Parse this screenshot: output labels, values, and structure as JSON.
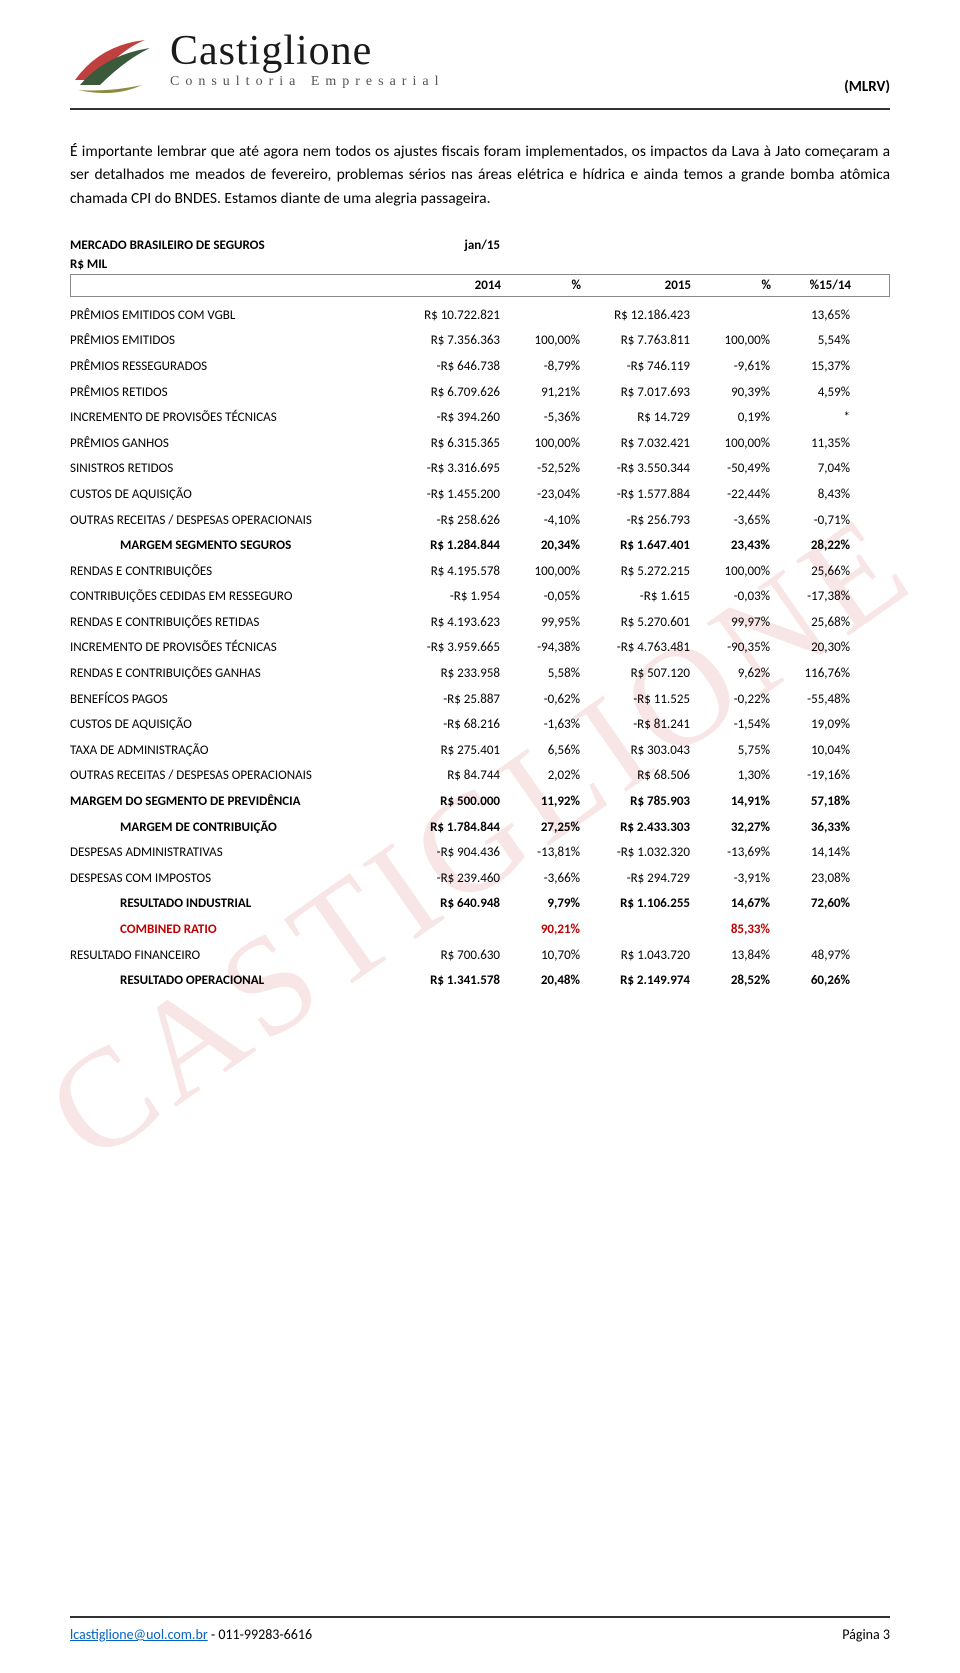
{
  "header": {
    "logo_main": "Castiglione",
    "logo_sub": "Consultoria Empresarial",
    "ticker": "(MLRV)"
  },
  "paragraph": "É importante lembrar que até agora nem todos os ajustes fiscais foram implementados, os impactos da Lava à Jato começaram a ser detalhados me meados de fevereiro, problemas sérios nas áreas elétrica e hídrica e ainda temos a grande bomba atômica chamada CPI do BNDES. Estamos diante de uma alegria passageira.",
  "table": {
    "title": "MERCADO BRASILEIRO DE SEGUROS",
    "period": "jan/15",
    "unit": "R$ MIL",
    "columns": [
      "2014",
      "%",
      "2015",
      "%",
      "%15/14"
    ],
    "rows": [
      {
        "label": "PRÊMIOS EMITIDOS COM VGBL",
        "v2014": "R$ 10.722.821",
        "p2014": "",
        "v2015": "R$ 12.186.423",
        "p2015": "",
        "chg": "13,65%",
        "bold": false,
        "indent": false,
        "red": false
      },
      {
        "label": "PRÊMIOS EMITIDOS",
        "v2014": "R$ 7.356.363",
        "p2014": "100,00%",
        "v2015": "R$ 7.763.811",
        "p2015": "100,00%",
        "chg": "5,54%",
        "bold": false,
        "indent": false,
        "red": false
      },
      {
        "label": "PRÊMIOS RESSEGURADOS",
        "v2014": "-R$ 646.738",
        "p2014": "-8,79%",
        "v2015": "-R$ 746.119",
        "p2015": "-9,61%",
        "chg": "15,37%",
        "bold": false,
        "indent": false,
        "red": false
      },
      {
        "label": "PRÊMIOS RETIDOS",
        "v2014": "R$ 6.709.626",
        "p2014": "91,21%",
        "v2015": "R$ 7.017.693",
        "p2015": "90,39%",
        "chg": "4,59%",
        "bold": false,
        "indent": false,
        "red": false
      },
      {
        "label": "INCREMENTO DE PROVISÕES TÉCNICAS",
        "v2014": "-R$ 394.260",
        "p2014": "-5,36%",
        "v2015": "R$ 14.729",
        "p2015": "0,19%",
        "chg": "*",
        "bold": false,
        "indent": false,
        "red": false
      },
      {
        "label": "PRÊMIOS GANHOS",
        "v2014": "R$ 6.315.365",
        "p2014": "100,00%",
        "v2015": "R$ 7.032.421",
        "p2015": "100,00%",
        "chg": "11,35%",
        "bold": false,
        "indent": false,
        "red": false
      },
      {
        "label": "SINISTROS RETIDOS",
        "v2014": "-R$ 3.316.695",
        "p2014": "-52,52%",
        "v2015": "-R$ 3.550.344",
        "p2015": "-50,49%",
        "chg": "7,04%",
        "bold": false,
        "indent": false,
        "red": false
      },
      {
        "label": "CUSTOS DE AQUISIÇÃO",
        "v2014": "-R$ 1.455.200",
        "p2014": "-23,04%",
        "v2015": "-R$ 1.577.884",
        "p2015": "-22,44%",
        "chg": "8,43%",
        "bold": false,
        "indent": false,
        "red": false
      },
      {
        "label": "OUTRAS RECEITAS / DESPESAS OPERACIONAIS",
        "v2014": "-R$ 258.626",
        "p2014": "-4,10%",
        "v2015": "-R$ 256.793",
        "p2015": "-3,65%",
        "chg": "-0,71%",
        "bold": false,
        "indent": false,
        "red": false
      },
      {
        "label": "MARGEM SEGMENTO SEGUROS",
        "v2014": "R$ 1.284.844",
        "p2014": "20,34%",
        "v2015": "R$ 1.647.401",
        "p2015": "23,43%",
        "chg": "28,22%",
        "bold": true,
        "indent": true,
        "red": false
      },
      {
        "label": "RENDAS E CONTRIBUIÇÕES",
        "v2014": "R$ 4.195.578",
        "p2014": "100,00%",
        "v2015": "R$ 5.272.215",
        "p2015": "100,00%",
        "chg": "25,66%",
        "bold": false,
        "indent": false,
        "red": false
      },
      {
        "label": "CONTRIBUIÇÕES CEDIDAS EM RESSEGURO",
        "v2014": "-R$ 1.954",
        "p2014": "-0,05%",
        "v2015": "-R$ 1.615",
        "p2015": "-0,03%",
        "chg": "-17,38%",
        "bold": false,
        "indent": false,
        "red": false
      },
      {
        "label": "RENDAS E CONTRIBUIÇÕES RETIDAS",
        "v2014": "R$ 4.193.623",
        "p2014": "99,95%",
        "v2015": "R$ 5.270.601",
        "p2015": "99,97%",
        "chg": "25,68%",
        "bold": false,
        "indent": false,
        "red": false
      },
      {
        "label": "INCREMENTO DE PROVISÕES TÉCNICAS",
        "v2014": "-R$ 3.959.665",
        "p2014": "-94,38%",
        "v2015": "-R$ 4.763.481",
        "p2015": "-90,35%",
        "chg": "20,30%",
        "bold": false,
        "indent": false,
        "red": false
      },
      {
        "label": "RENDAS E CONTRIBUIÇÕES GANHAS",
        "v2014": "R$ 233.958",
        "p2014": "5,58%",
        "v2015": "R$ 507.120",
        "p2015": "9,62%",
        "chg": "116,76%",
        "bold": false,
        "indent": false,
        "red": false
      },
      {
        "label": "BENEFÍCOS PAGOS",
        "v2014": "-R$ 25.887",
        "p2014": "-0,62%",
        "v2015": "-R$ 11.525",
        "p2015": "-0,22%",
        "chg": "-55,48%",
        "bold": false,
        "indent": false,
        "red": false
      },
      {
        "label": "CUSTOS DE AQUISIÇÃO",
        "v2014": "-R$ 68.216",
        "p2014": "-1,63%",
        "v2015": "-R$ 81.241",
        "p2015": "-1,54%",
        "chg": "19,09%",
        "bold": false,
        "indent": false,
        "red": false
      },
      {
        "label": "TAXA DE ADMINISTRAÇÃO",
        "v2014": "R$ 275.401",
        "p2014": "6,56%",
        "v2015": "R$ 303.043",
        "p2015": "5,75%",
        "chg": "10,04%",
        "bold": false,
        "indent": false,
        "red": false
      },
      {
        "label": "OUTRAS RECEITAS / DESPESAS OPERACIONAIS",
        "v2014": "R$ 84.744",
        "p2014": "2,02%",
        "v2015": "R$ 68.506",
        "p2015": "1,30%",
        "chg": "-19,16%",
        "bold": false,
        "indent": false,
        "red": false
      },
      {
        "label": "MARGEM DO SEGMENTO DE PREVIDÊNCIA",
        "v2014": "R$ 500.000",
        "p2014": "11,92%",
        "v2015": "R$ 785.903",
        "p2015": "14,91%",
        "chg": "57,18%",
        "bold": true,
        "indent": false,
        "red": false
      },
      {
        "label": "MARGEM DE CONTRIBUIÇÃO",
        "v2014": "R$ 1.784.844",
        "p2014": "27,25%",
        "v2015": "R$ 2.433.303",
        "p2015": "32,27%",
        "chg": "36,33%",
        "bold": true,
        "indent": true,
        "red": false
      },
      {
        "label": "DESPESAS ADMINISTRATIVAS",
        "v2014": "-R$ 904.436",
        "p2014": "-13,81%",
        "v2015": "-R$ 1.032.320",
        "p2015": "-13,69%",
        "chg": "14,14%",
        "bold": false,
        "indent": false,
        "red": false
      },
      {
        "label": "DESPESAS COM IMPOSTOS",
        "v2014": "-R$ 239.460",
        "p2014": "-3,66%",
        "v2015": "-R$ 294.729",
        "p2015": "-3,91%",
        "chg": "23,08%",
        "bold": false,
        "indent": false,
        "red": false
      },
      {
        "label": "RESULTADO INDUSTRIAL",
        "v2014": "R$ 640.948",
        "p2014": "9,79%",
        "v2015": "R$ 1.106.255",
        "p2015": "14,67%",
        "chg": "72,60%",
        "bold": true,
        "indent": true,
        "red": false
      },
      {
        "label": "COMBINED RATIO",
        "v2014": "",
        "p2014": "90,21%",
        "v2015": "",
        "p2015": "85,33%",
        "chg": "",
        "bold": true,
        "indent": true,
        "red": true
      },
      {
        "label": "RESULTADO FINANCEIRO",
        "v2014": "R$ 700.630",
        "p2014": "10,70%",
        "v2015": "R$ 1.043.720",
        "p2015": "13,84%",
        "chg": "48,97%",
        "bold": false,
        "indent": false,
        "red": false
      },
      {
        "label": "RESULTADO OPERACIONAL",
        "v2014": "R$ 1.341.578",
        "p2014": "20,48%",
        "v2015": "R$ 2.149.974",
        "p2015": "28,52%",
        "chg": "60,26%",
        "bold": true,
        "indent": true,
        "red": false
      }
    ]
  },
  "footer": {
    "email": "lcastiglione@uol.com.br",
    "sep": " - ",
    "phone": "011-99283-6616",
    "page": "Página 3"
  },
  "watermark": "CASTIGLIONE"
}
